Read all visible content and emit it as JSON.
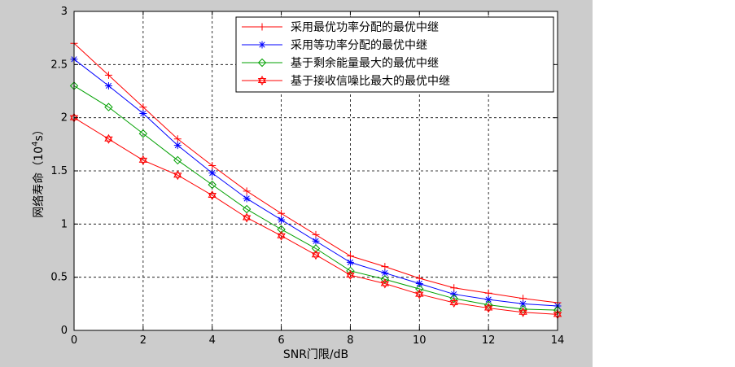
{
  "chart_data": {
    "type": "line",
    "title": "",
    "xlabel": "SNR门限/dB",
    "ylabel_main": "网络寿命（10",
    "ylabel_exp": "4",
    "ylabel_tail": "s）",
    "xlim": [
      0,
      14
    ],
    "ylim": [
      0,
      3
    ],
    "xticks": [
      0,
      2,
      4,
      6,
      8,
      10,
      12,
      14
    ],
    "yticks": [
      0,
      0.5,
      1,
      1.5,
      2,
      2.5,
      3
    ],
    "xtick_labels": [
      "0",
      "2",
      "4",
      "6",
      "8",
      "10",
      "12",
      "14"
    ],
    "ytick_labels": [
      "0",
      "0.5",
      "1",
      "1.5",
      "2",
      "2.5",
      "3"
    ],
    "grid": true,
    "legend_position": "top-right",
    "x": [
      0,
      1,
      2,
      3,
      4,
      5,
      6,
      7,
      8,
      9,
      10,
      11,
      12,
      13,
      14
    ],
    "series": [
      {
        "name": "采用最优功率分配的最优中继",
        "color": "#ff0000",
        "marker": "plus",
        "values": [
          2.7,
          2.4,
          2.1,
          1.8,
          1.55,
          1.31,
          1.1,
          0.9,
          0.7,
          0.6,
          0.49,
          0.4,
          0.35,
          0.3,
          0.26
        ]
      },
      {
        "name": "采用等功率分配的最优中继",
        "color": "#0000ff",
        "marker": "asterisk",
        "values": [
          2.55,
          2.3,
          2.04,
          1.74,
          1.48,
          1.24,
          1.04,
          0.84,
          0.64,
          0.54,
          0.44,
          0.34,
          0.29,
          0.25,
          0.23
        ]
      },
      {
        "name": "基于剩余能量最大的最优中继",
        "color": "#00a000",
        "marker": "diamond",
        "values": [
          2.3,
          2.1,
          1.85,
          1.6,
          1.37,
          1.14,
          0.95,
          0.77,
          0.56,
          0.48,
          0.39,
          0.3,
          0.24,
          0.2,
          0.19
        ]
      },
      {
        "name": "基于接收信噪比最大的最优中继",
        "color": "#ff0000",
        "marker": "hexagram",
        "values": [
          2.0,
          1.8,
          1.6,
          1.46,
          1.27,
          1.06,
          0.89,
          0.71,
          0.52,
          0.44,
          0.34,
          0.26,
          0.21,
          0.17,
          0.15
        ]
      }
    ]
  }
}
